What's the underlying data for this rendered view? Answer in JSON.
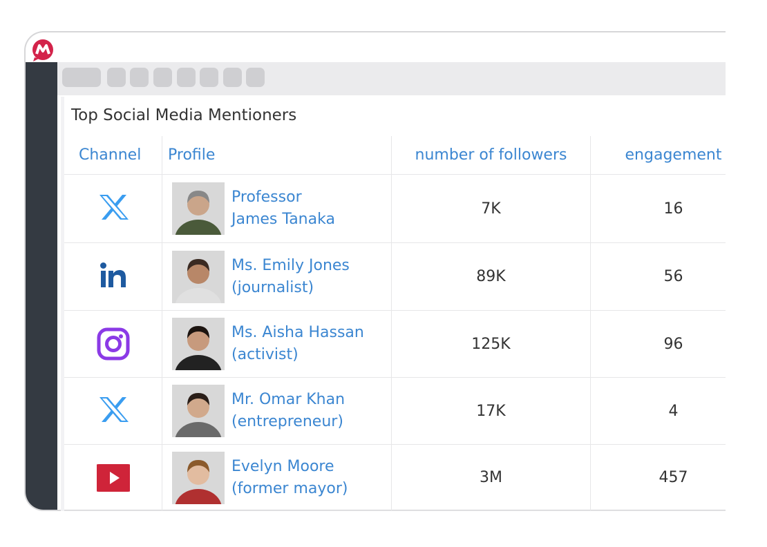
{
  "title": "Top Social Media Mentioners",
  "table": {
    "columns": [
      "Channel",
      "Profile",
      "number of followers",
      "engagement"
    ],
    "rows": [
      {
        "name_lines": [
          "Professor",
          "James Tanaka"
        ],
        "followers": "7K",
        "engagement": "16"
      },
      {
        "name_lines": [
          "Ms. Emily Jones",
          "(journalist)"
        ],
        "followers": "89K",
        "engagement": "56"
      },
      {
        "name_lines": [
          "Ms. Aisha Hassan",
          "(activist)"
        ],
        "followers": "125K",
        "engagement": "96"
      },
      {
        "name_lines": [
          "Mr. Omar Khan",
          "(entrepreneur)"
        ],
        "followers": "17K",
        "engagement": "4"
      },
      {
        "name_lines": [
          "Evelyn Moore",
          "(former mayor)"
        ],
        "followers": "3M",
        "engagement": "457"
      }
    ]
  }
}
